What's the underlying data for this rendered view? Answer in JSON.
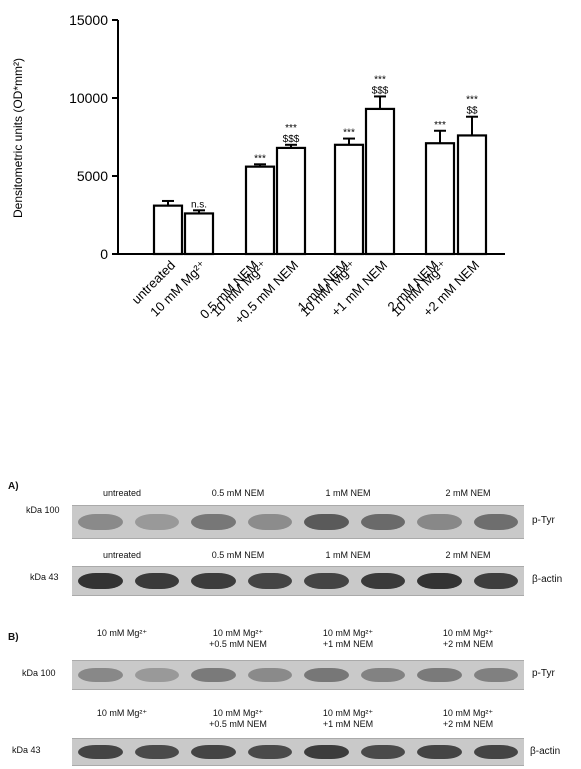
{
  "chart_data": {
    "type": "bar",
    "ylabel": "Densitometric units (OD*mm²)",
    "ylim": [
      0,
      15000
    ],
    "yticks": [
      0,
      5000,
      10000,
      15000
    ],
    "categories": [
      "untreated",
      "10 mM Mg²⁺",
      "0.5 mM NEM",
      "10 mM Mg²⁺ +0.5 mM NEM",
      "1 mM NEM",
      "10 mM Mg²⁺ +1 mM NEM",
      "2 mM NEM",
      "10 mM Mg²⁺ +2 mM NEM"
    ],
    "tick_labels": [
      "untreated",
      "10 mM Mg²⁺",
      "10 mM Mg²⁺",
      "+0.5 mM NEM",
      "10 mM Mg²⁺",
      "+1 mM NEM",
      "10 mM Mg²⁺",
      "+2 mM NEM"
    ],
    "hidden_tick_labels": [
      "0.5 mM NEM",
      "1 mM NEM",
      "2 mM NEM"
    ],
    "values": [
      3100,
      2600,
      5600,
      6800,
      7000,
      9300,
      7100,
      7600
    ],
    "errors": [
      300,
      200,
      150,
      200,
      400,
      800,
      800,
      1200
    ],
    "annotations": [
      "",
      "n.s.",
      "***",
      "***\n$$$",
      "***",
      "***\n$$$",
      "***",
      "***\n$$"
    ]
  },
  "blots": {
    "panel_a": {
      "label": "A)",
      "ptyr": {
        "kdal": "kDa 100",
        "tag": "p-Tyr",
        "lanes": [
          "untreated",
          "0.5 mM NEM",
          "1 mM NEM",
          "2 mM NEM"
        ]
      },
      "actin": {
        "kdal": "kDa 43",
        "tag": "β-actin",
        "lanes": [
          "untreated",
          "0.5 mM NEM",
          "1 mM NEM",
          "2 mM NEM"
        ]
      }
    },
    "panel_b": {
      "label": "B)",
      "ptyr": {
        "kdal": "kDa 100",
        "tag": "p-Tyr",
        "lanes": [
          "10 mM Mg²⁺",
          "10 mM Mg²⁺\n+0.5 mM NEM",
          "10 mM Mg²⁺\n+1 mM NEM",
          "10 mM Mg²⁺\n+2 mM NEM"
        ]
      },
      "actin": {
        "kdal": "kDa 43",
        "tag": "β-actin",
        "lanes": [
          "10 mM Mg²⁺",
          "10 mM Mg²⁺\n+0.5 mM NEM",
          "10 mM Mg²⁺\n+1 mM NEM",
          "10 mM Mg²⁺\n+2 mM NEM"
        ]
      }
    }
  }
}
